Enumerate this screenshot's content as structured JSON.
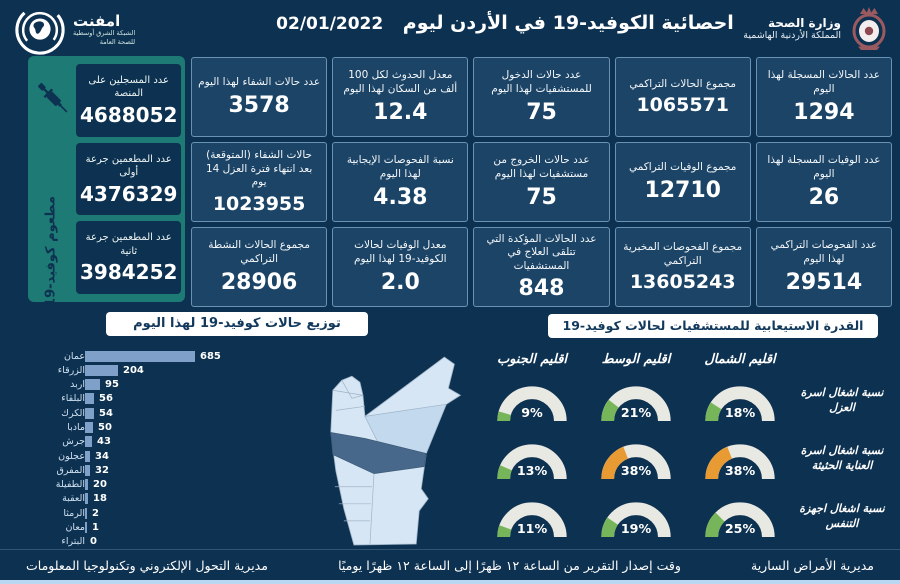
{
  "header": {
    "title": "احصائية الكوفيد-19 في الأردن ليوم",
    "date": "02/01/2022",
    "ministry": {
      "name": "وزارة الصحة",
      "sub": "المملكة الأردنية الهاشمية"
    },
    "emphnet": {
      "name": "امفنت",
      "sub1": "الشبكة الشرق أوسطية",
      "sub2": "للصحة العامة"
    }
  },
  "vaccination": {
    "side_label": "مطعوم كوفيد-19",
    "cards": [
      {
        "label": "عدد المسجلين على المنصة",
        "value": "4688052"
      },
      {
        "label": "عدد المطعمين جرعة أولى",
        "value": "4376329"
      },
      {
        "label": "عدد المطعمين جرعة ثانية",
        "value": "3984252"
      }
    ]
  },
  "stats": [
    {
      "label": "عدد الحالات المسجلة لهذا اليوم",
      "value": "1294"
    },
    {
      "label": "مجموع الحالات التراكمي",
      "value": "1065571"
    },
    {
      "label": "عدد حالات الدخول للمستشفيات لهذا اليوم",
      "value": "75"
    },
    {
      "label": "معدل الحدوث لكل 100 ألف من السكان لهذا اليوم",
      "value": "12.4"
    },
    {
      "label": "عدد حالات الشفاء لهذا اليوم",
      "value": "3578"
    },
    {
      "label": "عدد الوفيات المسجلة لهذا اليوم",
      "value": "26"
    },
    {
      "label": "مجموع الوفيات التراكمي",
      "value": "12710"
    },
    {
      "label": "عدد حالات الخروج من مستشفيات لهذا اليوم",
      "value": "75"
    },
    {
      "label": "نسبة الفحوصات الإيجابية لهذا اليوم",
      "value": "4.38"
    },
    {
      "label": "حالات الشفاء (المتوقعة) بعد انتهاء فترة العزل 14 يوم",
      "value": "1023955"
    },
    {
      "label": "عدد الفحوصات التراكمي لهذا اليوم",
      "value": "29514"
    },
    {
      "label": "مجموع الفحوصات المخبرية التراكمي",
      "value": "13605243"
    },
    {
      "label": "عدد الحالات المؤكدة التي تتلقى العلاج في المستشفيات",
      "value": "848"
    },
    {
      "label": "معدل الوفيات لحالات الكوفيد-19 لهذا اليوم",
      "value": "2.0"
    },
    {
      "label": "مجموع الحالات النشطة التراكمي",
      "value": "28906"
    }
  ],
  "chart_data": [
    {
      "type": "bar",
      "title": "توزيع حالات كوفيد-19 لهذا اليوم",
      "categories": [
        "عمان",
        "الزرقاء",
        "اربد",
        "البلقاء",
        "الكرك",
        "مادبا",
        "جرش",
        "عجلون",
        "المفرق",
        "الطفيلة",
        "العقبة",
        "الرمثا",
        "معان",
        "البتراء"
      ],
      "values": [
        685,
        204,
        95,
        56,
        54,
        50,
        43,
        34,
        32,
        20,
        18,
        2,
        1,
        0
      ],
      "xlabel": "",
      "ylabel": "",
      "orientation": "horizontal",
      "bar_color": "#7fa0c8"
    },
    {
      "type": "gauge",
      "title": "القدرة الاستيعابية للمستشفيات لحالات كوفيد-19",
      "columns": [
        "اقليم الشمال",
        "اقليم الوسط",
        "اقليم الجنوب"
      ],
      "unit": "%",
      "rows": [
        {
          "label": "نسبة اشغال اسرة العزل",
          "values": [
            18,
            21,
            9
          ],
          "colors": [
            "green",
            "green",
            "green"
          ]
        },
        {
          "label": "نسبة اشغال اسرة العناية الحثيثة",
          "values": [
            38,
            38,
            13
          ],
          "colors": [
            "orange",
            "orange",
            "green"
          ]
        },
        {
          "label": "نسبة اشغال اجهزة التنفس",
          "values": [
            25,
            19,
            11
          ],
          "colors": [
            "green",
            "green",
            "green"
          ]
        }
      ]
    }
  ],
  "footer": {
    "it_directorate": "مديرية التحول الإلكتروني وتكنولوجيا المعلومات",
    "report_time": "وقت إصدار التقرير من الساعة ١٢ ظهرًا إلى الساعة ١٢ ظهرًا يوميًا",
    "diseases_directorate": "مديرية الأمراض السارية"
  },
  "colors": {
    "background": "#0d3150",
    "card": "#1b4466",
    "card_border": "#6a92b5",
    "teal_panel": "#1e7a74",
    "bar": "#7fa0c8",
    "green": "#77b55a",
    "orange": "#e89a33",
    "gauge_track": "#e9e9e3",
    "map_light": "#d7e6f4",
    "map_mid": "#c3d9ee",
    "map_dark": "#47688a",
    "bottom_strip": "#b9d7f0"
  }
}
